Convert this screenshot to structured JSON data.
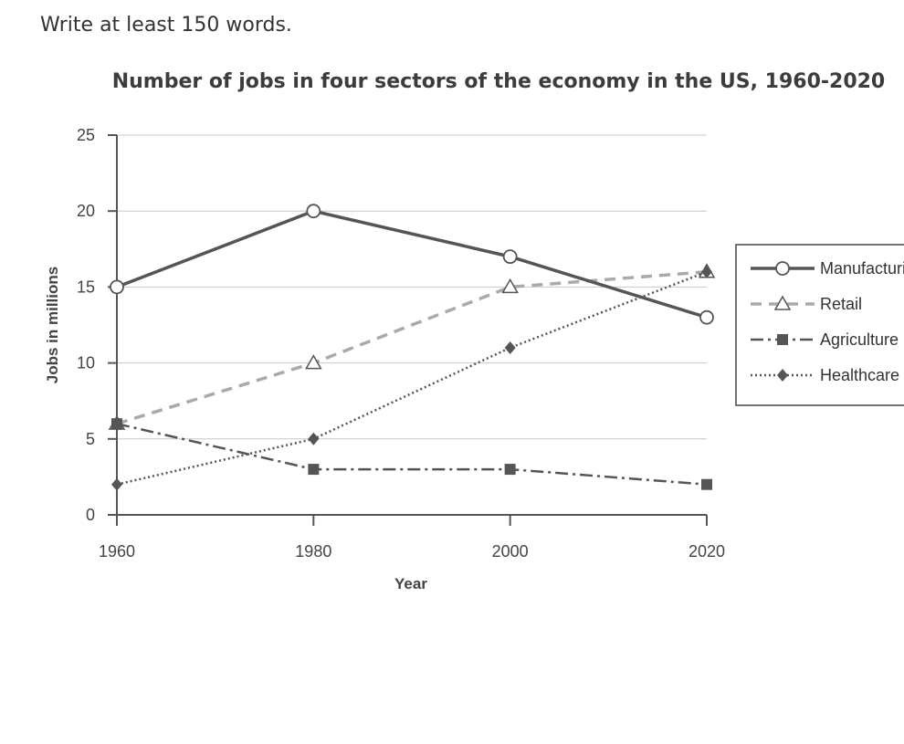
{
  "instruction": "Write at least 150 words.",
  "chart_data": {
    "type": "line",
    "title": "Number of jobs in four sectors of the economy in the US, 1960-2020",
    "xlabel": "Year",
    "ylabel": "Jobs in millions",
    "x": [
      1960,
      1980,
      2000,
      2020
    ],
    "ylim": [
      0,
      25
    ],
    "yticks": [
      0,
      5,
      10,
      15,
      20,
      25
    ],
    "grid": true,
    "legend_position": "right",
    "series": [
      {
        "name": "Manufacturing",
        "values": [
          15,
          20,
          17,
          13
        ],
        "marker": "circle",
        "line_style": "solid",
        "color": "#555555"
      },
      {
        "name": "Retail",
        "values": [
          6,
          10,
          15,
          16
        ],
        "marker": "triangle",
        "line_style": "dashed",
        "color": "#aaaaaa"
      },
      {
        "name": "Agriculture",
        "values": [
          6,
          3,
          3,
          2
        ],
        "marker": "square",
        "line_style": "dash-dot",
        "color": "#555555"
      },
      {
        "name": "Healthcare",
        "values": [
          2,
          5,
          11,
          16
        ],
        "marker": "diamond",
        "line_style": "dotted",
        "color": "#555555"
      }
    ]
  }
}
